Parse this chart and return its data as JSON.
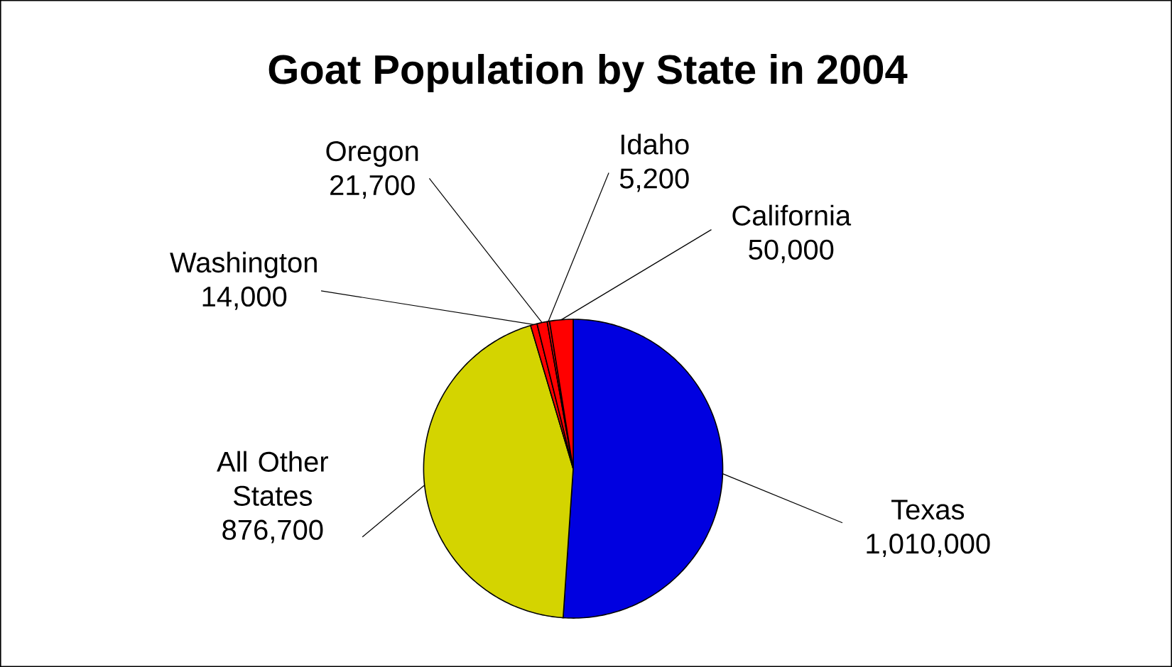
{
  "chart_data": {
    "type": "pie",
    "title": "Goat Population by State in 2004",
    "categories": [
      "Texas",
      "All Other States",
      "Washington",
      "Oregon",
      "Idaho",
      "California"
    ],
    "values": [
      1010000,
      876700,
      14000,
      21700,
      5200,
      50000
    ],
    "value_labels": [
      "1,010,000",
      "876,700",
      "14,000",
      "21,700",
      "5,200",
      "50,000"
    ],
    "colors": [
      "#0000e0",
      "#d4d400",
      "#ff0000",
      "#ff0000",
      "#ff0000",
      "#ff0000"
    ]
  }
}
